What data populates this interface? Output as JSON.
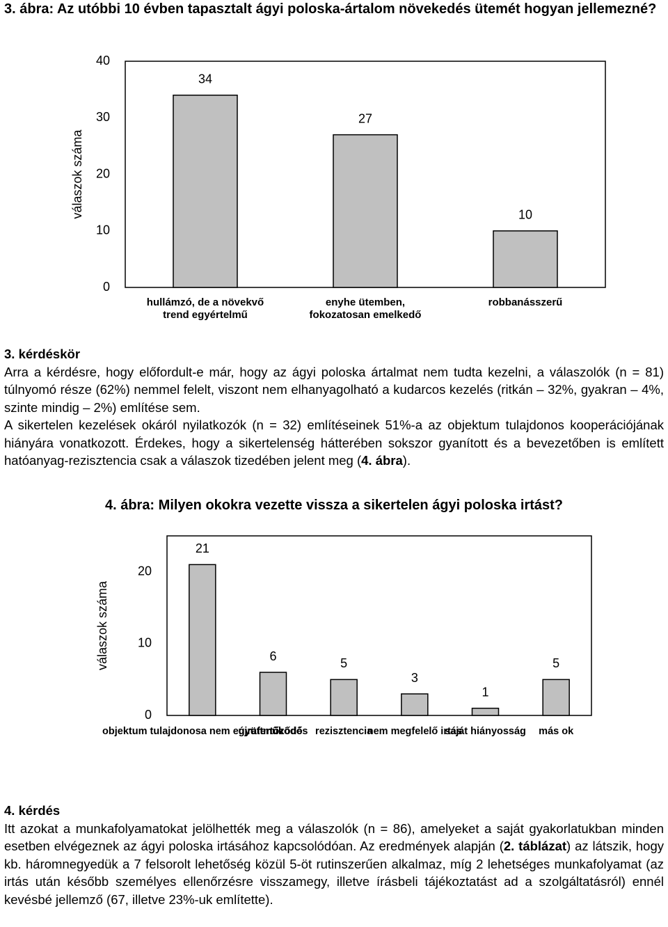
{
  "figure3_title": "3. ábra: Az utóbbi 10 évben tapasztalt ágyi poloska-ártalom növekedés ütemét hogyan jellemezné?",
  "section3": {
    "heading": "3. kérdéskör",
    "paragraph1": "Arra a kérdésre, hogy előfordult-e már, hogy az ágyi poloska ártalmat nem tudta kezelni, a válaszolók (n = 81) túlnyomó része (62%) nemmel felelt, viszont nem elhanyagolható a kudarcos kezelés (ritkán – 32%, gyakran – 4%, szinte mindig – 2%) említése sem.",
    "paragraph2": [
      "A sikertelen kezelések okáról nyilatkozók (n = 32) említéseinek 51%-a az objektum tulajdonos kooperációjának hiányára vonatkozott. Érdekes, hogy a sikertelenség hátterében sokszor gyanított és a bevezetőben is említett hatóanyag-rezisztencia csak a válaszok tizedében jelent meg (",
      "4. ábra",
      ")."
    ]
  },
  "figure4_title": "4. ábra: Milyen okokra vezette vissza a sikertelen ágyi poloska irtást?",
  "section4": {
    "heading": "4. kérdés",
    "paragraph": [
      "Itt azokat a munkafolyamatokat jelölhették meg a válaszolók (n = 86), amelyeket a saját gyakorlatukban minden esetben elvégeznek az ágyi poloska irtásához kapcsolódóan. Az eredmények alapján (",
      "2. táblázat",
      ") az látszik, hogy kb. háromnegyedük a 7 felsorolt lehetőség közül 5-öt rutinszerűen alkalmaz, míg 2 lehetséges munkafolyamat (az irtás után később személyes ellenőrzésre visszamegy, illetve írásbeli tájékoztatást ad a szolgáltatásról) ennél kevésbé jellemző (67, illetve 23%-uk említette)."
    ]
  },
  "chart_data": [
    {
      "type": "bar",
      "y_label": "válaszok száma",
      "categories": [
        [
          "hullámzó, de a növekvő",
          "trend egyértelmű"
        ],
        [
          "enyhe ütemben,",
          "fokozatosan emelkedő"
        ],
        [
          "robbanásszerű"
        ]
      ],
      "values": [
        34,
        27,
        10
      ],
      "color": "#c0c0c0",
      "ylim": [
        0,
        40
      ],
      "yticks": [
        0,
        10,
        20,
        30,
        40
      ]
    },
    {
      "type": "bar",
      "y_label": "válaszok száma",
      "categories": [
        [
          "objektum tulajdonosa nem együttműködő"
        ],
        [
          "újrafertőződés"
        ],
        [
          "rezisztencia"
        ],
        [
          "nem megfelelő irtás"
        ],
        [
          "saját hiányosság"
        ],
        [
          "más ok"
        ]
      ],
      "values": [
        21,
        6,
        5,
        3,
        1,
        5
      ],
      "color": "#c0c0c0",
      "ylim": [
        0,
        25
      ],
      "yticks": [
        0,
        10,
        20
      ]
    }
  ]
}
